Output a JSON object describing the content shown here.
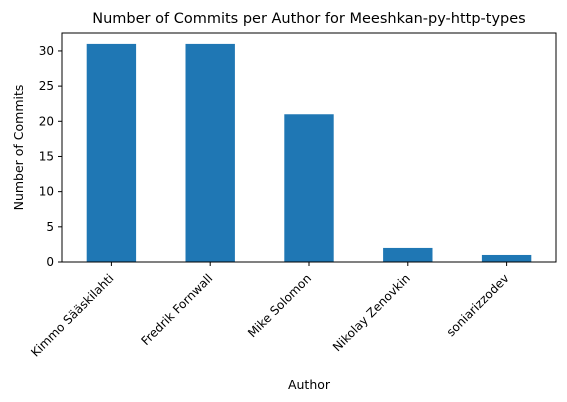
{
  "chart_data": {
    "type": "bar",
    "title": "Number of Commits per Author for Meeshkan-py-http-types",
    "xlabel": "Author",
    "ylabel": "Number of Commits",
    "categories": [
      "Kimmo Sääskilahti",
      "Fredrik Fornwall",
      "Mike Solomon",
      "Nikolay Zenovkin",
      "soniarizzodev"
    ],
    "values": [
      31,
      31,
      21,
      2,
      1
    ],
    "ylim": [
      0,
      32.55
    ],
    "yticks": [
      0,
      5,
      10,
      15,
      20,
      25,
      30
    ],
    "grid": false,
    "legend": "none",
    "bar_color": "#1f77b4"
  }
}
